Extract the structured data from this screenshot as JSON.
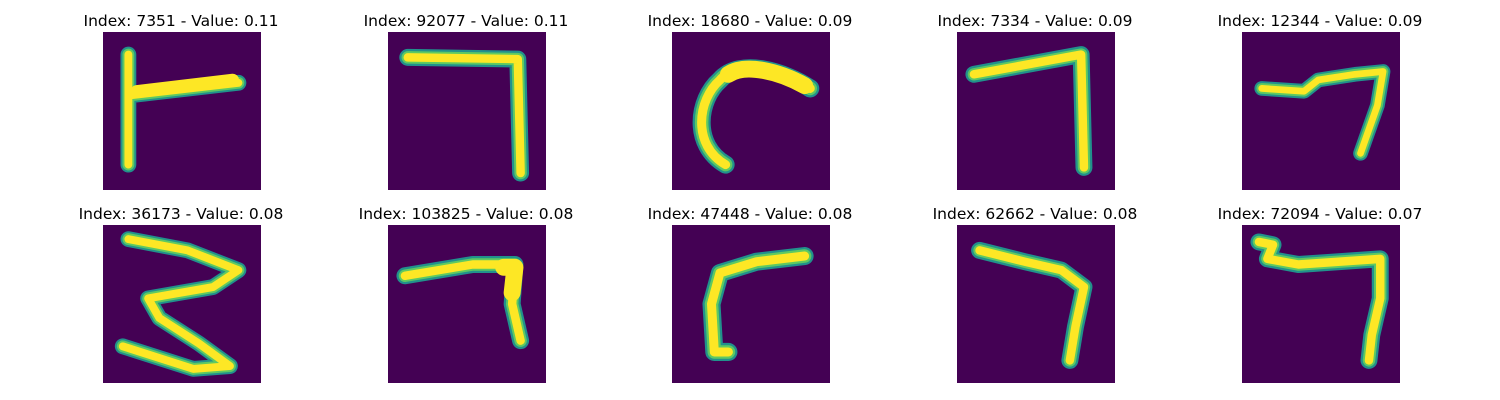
{
  "colors": {
    "background": "#440154",
    "edge": "#21918c",
    "edge_bright": "#5ec962",
    "stroke": "#fde725"
  },
  "panels": [
    {
      "title": "Index: 7351 - Value: 0.11",
      "digit_shape": "T-like stroke"
    },
    {
      "title": "Index: 92077 - Value: 0.11",
      "digit_shape": "seven"
    },
    {
      "title": "Index: 18680 - Value: 0.09",
      "digit_shape": "curved hook"
    },
    {
      "title": "Index: 7334 - Value: 0.09",
      "digit_shape": "seven"
    },
    {
      "title": "Index: 12344 - Value: 0.09",
      "digit_shape": "seven"
    },
    {
      "title": "Index: 36173 - Value: 0.08",
      "digit_shape": "three"
    },
    {
      "title": "Index: 103825 - Value: 0.08",
      "digit_shape": "seven"
    },
    {
      "title": "Index: 47448 - Value: 0.08",
      "digit_shape": "hook"
    },
    {
      "title": "Index: 62662 - Value: 0.08",
      "digit_shape": "seven"
    },
    {
      "title": "Index: 72094 - Value: 0.07",
      "digit_shape": "seven"
    }
  ]
}
